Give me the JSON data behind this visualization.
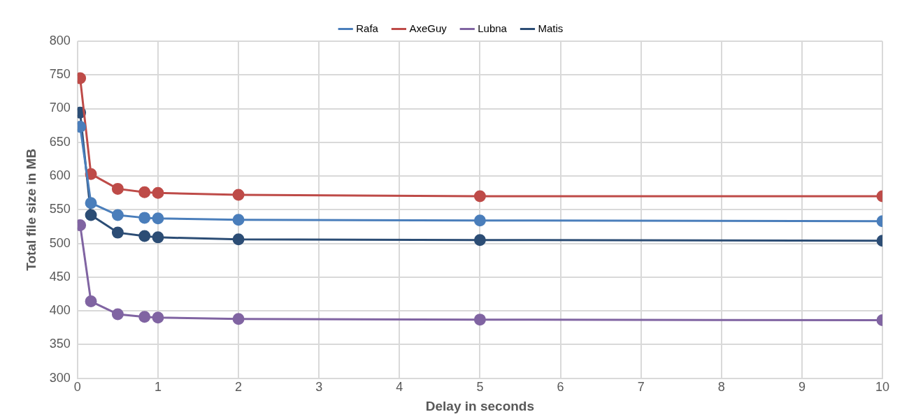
{
  "chart_data": {
    "type": "line",
    "xlabel": "Delay in seconds",
    "ylabel": "Total file size in MB",
    "x": [
      0.033,
      0.167,
      0.5,
      0.833,
      1,
      2,
      5,
      10
    ],
    "series": [
      {
        "name": "Rafa",
        "color": "#4a7ebb",
        "values": [
          673,
          560,
          542,
          538,
          537,
          535,
          534,
          533
        ]
      },
      {
        "name": "AxeGuy",
        "color": "#be4b48",
        "values": [
          745,
          603,
          581,
          576,
          575,
          572,
          570,
          570
        ]
      },
      {
        "name": "Lubna",
        "color": "#8064a2",
        "values": [
          527,
          414,
          395,
          391,
          390,
          388,
          387,
          386
        ]
      },
      {
        "name": "Matis",
        "color": "#2c4d75",
        "values": [
          694,
          542,
          516,
          511,
          509,
          506,
          505,
          504
        ]
      }
    ],
    "xlim": [
      0,
      10
    ],
    "xticks": [
      0,
      1,
      2,
      3,
      4,
      5,
      6,
      7,
      8,
      9,
      10
    ],
    "ylim": [
      300,
      800
    ],
    "yticks": [
      300,
      350,
      400,
      450,
      500,
      550,
      600,
      650,
      700,
      750,
      800
    ],
    "grid": true,
    "legend": "top",
    "marker": "circle",
    "line_style": "solid"
  }
}
